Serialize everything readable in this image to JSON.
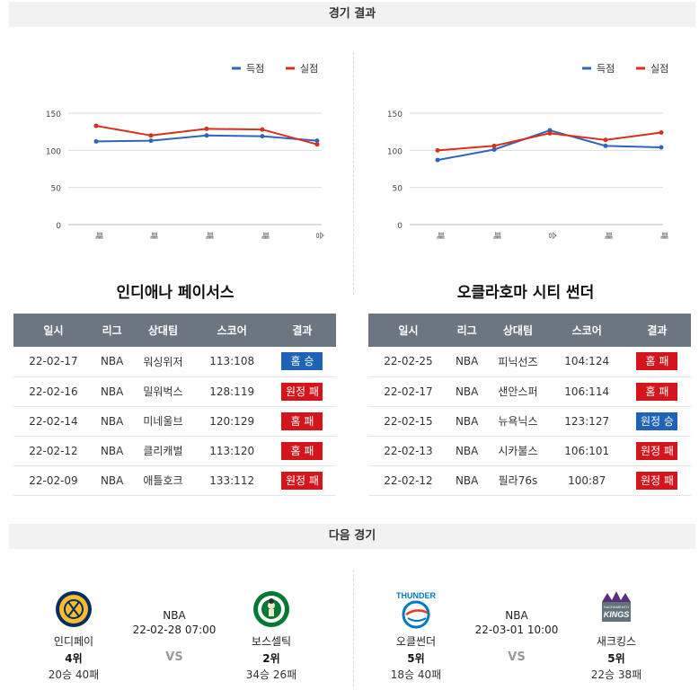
{
  "headers": {
    "results": "경기 결과",
    "next": "다음 경기"
  },
  "legend": {
    "score": "득점",
    "allowed": "실점"
  },
  "colors": {
    "score": "#2f66b9",
    "allowed": "#d9301c"
  },
  "table_headers": [
    "일시",
    "리그",
    "상대팀",
    "스코어",
    "결과"
  ],
  "chart_data": [
    {
      "type": "line",
      "categories": [
        "패",
        "패",
        "패",
        "패",
        "승"
      ],
      "series": [
        {
          "name": "득점",
          "values": [
            112,
            113,
            120,
            119,
            113
          ]
        },
        {
          "name": "실점",
          "values": [
            133,
            120,
            129,
            128,
            108
          ]
        }
      ],
      "ylim": [
        0,
        150
      ],
      "yticks": [
        0,
        50,
        100,
        150
      ],
      "grid": true,
      "legend_position": "top-right"
    },
    {
      "type": "line",
      "categories": [
        "패",
        "패",
        "승",
        "패",
        "패"
      ],
      "series": [
        {
          "name": "득점",
          "values": [
            87,
            101,
            127,
            106,
            104
          ]
        },
        {
          "name": "실점",
          "values": [
            100,
            106,
            123,
            114,
            124
          ]
        }
      ],
      "ylim": [
        0,
        150
      ],
      "yticks": [
        0,
        50,
        100,
        150
      ],
      "grid": true,
      "legend_position": "top-right"
    }
  ],
  "teams": [
    {
      "title": "인디애나 페이서스",
      "rows": [
        {
          "date": "22-02-17",
          "league": "NBA",
          "opponent": "워싱위저",
          "score": "113:108",
          "result": "홈 승",
          "win": true
        },
        {
          "date": "22-02-16",
          "league": "NBA",
          "opponent": "밀워벅스",
          "score": "128:119",
          "result": "원정 패",
          "win": false
        },
        {
          "date": "22-02-14",
          "league": "NBA",
          "opponent": "미네울브",
          "score": "120:129",
          "result": "홈 패",
          "win": false
        },
        {
          "date": "22-02-12",
          "league": "NBA",
          "opponent": "클리캐벌",
          "score": "113:120",
          "result": "홈 패",
          "win": false
        },
        {
          "date": "22-02-09",
          "league": "NBA",
          "opponent": "애틀호크",
          "score": "133:112",
          "result": "원정 패",
          "win": false
        }
      ]
    },
    {
      "title": "오클라호마 시티 썬더",
      "rows": [
        {
          "date": "22-02-25",
          "league": "NBA",
          "opponent": "피닉선즈",
          "score": "104:124",
          "result": "홈 패",
          "win": false
        },
        {
          "date": "22-02-17",
          "league": "NBA",
          "opponent": "샌안스퍼",
          "score": "106:114",
          "result": "홈 패",
          "win": false
        },
        {
          "date": "22-02-15",
          "league": "NBA",
          "opponent": "뉴욕닉스",
          "score": "123:127",
          "result": "원정 승",
          "win": true
        },
        {
          "date": "22-02-13",
          "league": "NBA",
          "opponent": "시카불스",
          "score": "106:101",
          "result": "원정 패",
          "win": false
        },
        {
          "date": "22-02-12",
          "league": "NBA",
          "opponent": "필라76s",
          "score": "100:87",
          "result": "원정 패",
          "win": false
        }
      ]
    }
  ],
  "next_games": [
    {
      "league": "NBA",
      "datetime": "22-02-28 07:00",
      "vs": "VS",
      "home": {
        "name": "인디페이",
        "rank": "4위",
        "record": "20승 40패",
        "logo": "pacers-logo"
      },
      "away": {
        "name": "보스셀틱",
        "rank": "2위",
        "record": "34승 26패",
        "logo": "celtics-logo"
      }
    },
    {
      "league": "NBA",
      "datetime": "22-03-01 10:00",
      "vs": "VS",
      "home": {
        "name": "오클썬더",
        "rank": "5위",
        "record": "18승 40패",
        "logo": "thunder-logo",
        "logo_text": "THUNDER"
      },
      "away": {
        "name": "새크킹스",
        "rank": "5위",
        "record": "22승 38패",
        "logo": "kings-logo",
        "logo_text": "KINGS",
        "logo_subtext": "SACRAMENTO"
      }
    }
  ]
}
